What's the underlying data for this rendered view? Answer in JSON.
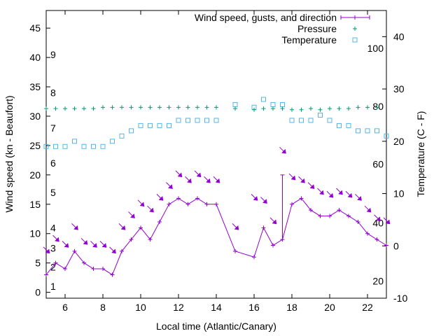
{
  "chart_data": {
    "type": "line",
    "xlabel": "Local time (Atlantic/Canary)",
    "ylabel_left": "Wind speed (kn - Beaufort)",
    "ylabel_right": "Temperature (C - F)",
    "xlim": [
      5,
      23
    ],
    "ylim_left": [
      -1,
      48
    ],
    "ylim_right": [
      -10,
      45
    ],
    "x_ticks": [
      6,
      8,
      10,
      12,
      14,
      16,
      18,
      20,
      22
    ],
    "y_left_ticks": [
      0,
      5,
      10,
      15,
      20,
      25,
      30,
      35,
      40,
      45
    ],
    "y_right_ticks": [
      -10,
      0,
      10,
      20,
      30,
      40
    ],
    "beaufort_labels": [
      {
        "label": "1",
        "y": 1
      },
      {
        "label": "2",
        "y": 4.3
      },
      {
        "label": "3",
        "y": 7.5
      },
      {
        "label": "4",
        "y": 11
      },
      {
        "label": "5",
        "y": 17
      },
      {
        "label": "6",
        "y": 22
      },
      {
        "label": "7",
        "y": 28
      },
      {
        "label": "8",
        "y": 34
      },
      {
        "label": "9",
        "y": 40.5
      }
    ],
    "fahrenheit_labels": [
      {
        "label": "20",
        "c": -6.7
      },
      {
        "label": "40",
        "c": 4.4
      },
      {
        "label": "60",
        "c": 15.6
      },
      {
        "label": "80",
        "c": 26.7
      },
      {
        "label": "100",
        "c": 37.8
      }
    ],
    "legend": [
      "Wind speed, gusts, and direction",
      "Pressure",
      "Temperature"
    ],
    "legend_position": "top-right",
    "grid": false,
    "colors": {
      "wind": "#9400d3",
      "pressure": "#009e73",
      "temperature": "#56b4e9"
    },
    "wind": {
      "x": [
        5,
        5.5,
        6,
        6.5,
        7,
        7.5,
        8,
        8.5,
        9,
        9.5,
        10,
        10.5,
        11,
        11.5,
        12,
        12.5,
        13,
        13.5,
        14,
        15,
        16,
        16.5,
        17,
        17.5,
        18,
        18.5,
        19,
        19.5,
        20,
        20.5,
        21,
        21.5,
        22,
        22.5,
        23
      ],
      "speed": [
        3,
        5,
        4,
        7,
        5,
        4,
        4,
        3,
        7,
        9,
        11,
        9,
        12,
        15,
        16,
        15,
        16,
        15,
        15,
        7,
        6,
        11,
        8,
        9,
        15,
        16,
        14,
        13,
        13,
        14,
        13,
        12,
        10,
        9,
        8
      ],
      "gust": [
        {
          "x": 17.5,
          "from": 9,
          "to": 20
        }
      ],
      "arrows_y": [
        7,
        9,
        8,
        11,
        8.5,
        8,
        8,
        7,
        11,
        13,
        15,
        14,
        16,
        18,
        20,
        19,
        20,
        19,
        19,
        11,
        16,
        15.5,
        12,
        24,
        19.5,
        19,
        18,
        17,
        16.5,
        17,
        16.5,
        16,
        14,
        12.5,
        12
      ]
    },
    "pressure": {
      "x": [
        5,
        5.5,
        6,
        6.5,
        7,
        7.5,
        8,
        8.5,
        9,
        9.5,
        10,
        10.5,
        11,
        11.5,
        12,
        12.5,
        13,
        13.5,
        14,
        15,
        16,
        16.5,
        17,
        17.5,
        18,
        18.5,
        19,
        19.5,
        20,
        20.5,
        21,
        21.5,
        22,
        22.5
      ],
      "y": [
        31.3,
        31.3,
        31.3,
        31.3,
        31.3,
        31.3,
        31.5,
        31.5,
        31.5,
        31.5,
        31.5,
        31.5,
        31.5,
        31.5,
        31.5,
        31.5,
        31.5,
        31.5,
        31.5,
        31.3,
        31.1,
        31.3,
        31.3,
        31.3,
        31.1,
        31.1,
        31.3,
        31.1,
        31.3,
        31.3,
        31.3,
        31.5,
        31.5,
        31.5
      ]
    },
    "temperature": {
      "x": [
        5,
        5.5,
        6,
        6.5,
        7,
        7.5,
        8,
        8.5,
        9,
        9.5,
        10,
        10.5,
        11,
        11.5,
        12,
        12.5,
        13,
        13.5,
        14,
        15,
        16,
        16.5,
        17,
        17.5,
        18,
        18.5,
        19,
        19.5,
        20,
        20.5,
        21,
        21.5,
        22,
        22.5,
        23
      ],
      "y": [
        19,
        19,
        19,
        20,
        19,
        19,
        19,
        20,
        21,
        22,
        23,
        23,
        23,
        23,
        24,
        24,
        24,
        24,
        24,
        27,
        26.5,
        28,
        27,
        27,
        24,
        24,
        24,
        25,
        24,
        23,
        23,
        22,
        22,
        22,
        21
      ]
    }
  }
}
